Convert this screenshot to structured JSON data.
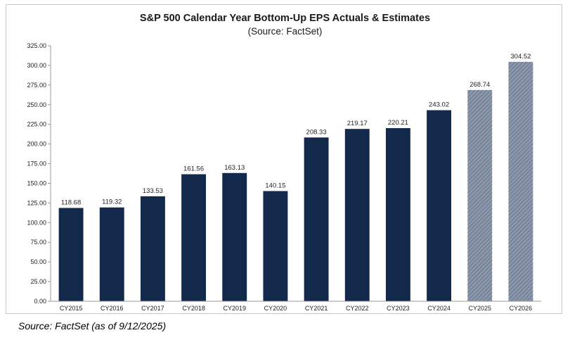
{
  "chart_data": {
    "type": "bar",
    "title": "S&P 500 Calendar Year Bottom-Up EPS Actuals & Estimates",
    "subtitle": "(Source: FactSet)",
    "categories": [
      "CY2015",
      "CY2016",
      "CY2017",
      "CY2018",
      "CY2019",
      "CY2020",
      "CY2021",
      "CY2022",
      "CY2023",
      "CY2024",
      "CY2025",
      "CY2026"
    ],
    "values": [
      118.68,
      119.32,
      133.53,
      161.56,
      163.13,
      140.15,
      208.33,
      219.17,
      220.21,
      243.02,
      268.74,
      304.52
    ],
    "value_labels": [
      "118.68",
      "119.32",
      "133.53",
      "161.56",
      "163.13",
      "140.15",
      "208.33",
      "219.17",
      "220.21",
      "243.02",
      "268.74",
      "304.52"
    ],
    "estimate_flags": [
      false,
      false,
      false,
      false,
      false,
      false,
      false,
      false,
      false,
      false,
      true,
      true
    ],
    "ylim": [
      0,
      325
    ],
    "y_ticks": [
      0,
      25,
      50,
      75,
      100,
      125,
      150,
      175,
      200,
      225,
      250,
      275,
      300,
      325
    ],
    "y_tick_labels": [
      "0.00",
      "25.00",
      "50.00",
      "75.00",
      "100.00",
      "125.00",
      "150.00",
      "175.00",
      "200.00",
      "225.00",
      "250.00",
      "275.00",
      "300.00",
      "325.00"
    ],
    "grid": false,
    "colors": {
      "actual": "#13294b",
      "estimate": "#8c97ab",
      "estimate_stripe": "#5f6d86"
    }
  },
  "caption": "Source: FactSet (as of 9/12/2025)"
}
